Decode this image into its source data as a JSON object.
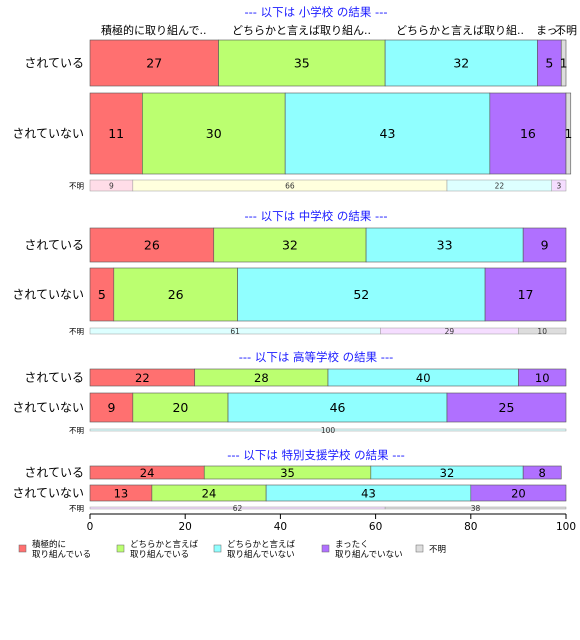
{
  "chart_data": {
    "type": "bar",
    "orientation": "horizontal",
    "stacked": "percent",
    "xlim": [
      0,
      100
    ],
    "xticks": [
      0,
      20,
      40,
      60,
      80,
      100
    ],
    "grid": false,
    "legend_position": "bottom-left",
    "column_headers": [
      "積極的に取り組んで..",
      "どちらかと言えば取り組ん..",
      "どちらかと言えば取り組..",
      "まっ..",
      "不明"
    ],
    "legend": [
      {
        "label": "積極的に\n取り組んでいる",
        "color": "#FF7070"
      },
      {
        "label": "どちらかと言えば\n取り組んでいる",
        "color": "#BBFF70"
      },
      {
        "label": "どちらかと言えば\n取り組んでいない",
        "color": "#90FFFF"
      },
      {
        "label": "まったく\n取り組んでいない",
        "color": "#B070FF"
      },
      {
        "label": "不明",
        "color": "#DDDDDD"
      }
    ],
    "unknown_colors": [
      "#FFDDE8",
      "#FFFFDD",
      "#DDFFFF",
      "#F5DDFF",
      "#DDDDDD"
    ],
    "panels": [
      {
        "title": "--- 以下は 小学校 の結果 ---",
        "rows": [
          {
            "label": "されている",
            "values": [
              27,
              35,
              32,
              5,
              1
            ]
          },
          {
            "label": "されていない",
            "values": [
              11,
              30,
              43,
              16,
              1
            ]
          }
        ],
        "unknown": {
          "label": "不明",
          "values": [
            9,
            66,
            22,
            3,
            0
          ]
        }
      },
      {
        "title": "--- 以下は 中学校 の結果 ---",
        "rows": [
          {
            "label": "されている",
            "values": [
              26,
              32,
              33,
              9,
              0
            ]
          },
          {
            "label": "されていない",
            "values": [
              5,
              26,
              52,
              17,
              0
            ]
          }
        ],
        "unknown": {
          "label": "不明",
          "values": [
            0,
            0,
            61,
            29,
            10
          ]
        }
      },
      {
        "title": "--- 以下は 高等学校 の結果 ---",
        "rows": [
          {
            "label": "されている",
            "values": [
              22,
              28,
              40,
              10,
              0
            ]
          },
          {
            "label": "されていない",
            "values": [
              9,
              20,
              46,
              25,
              0
            ]
          }
        ],
        "unknown": {
          "label": "不明",
          "values": [
            0,
            0,
            100,
            0,
            0
          ]
        }
      },
      {
        "title": "--- 以下は 特別支援学校 の結果 ---",
        "rows": [
          {
            "label": "されている",
            "values": [
              24,
              35,
              32,
              8,
              0
            ]
          },
          {
            "label": "されていない",
            "values": [
              13,
              24,
              43,
              20,
              0
            ]
          }
        ],
        "unknown": {
          "label": "不明",
          "values": [
            0,
            0,
            0,
            62,
            38
          ]
        }
      }
    ]
  }
}
